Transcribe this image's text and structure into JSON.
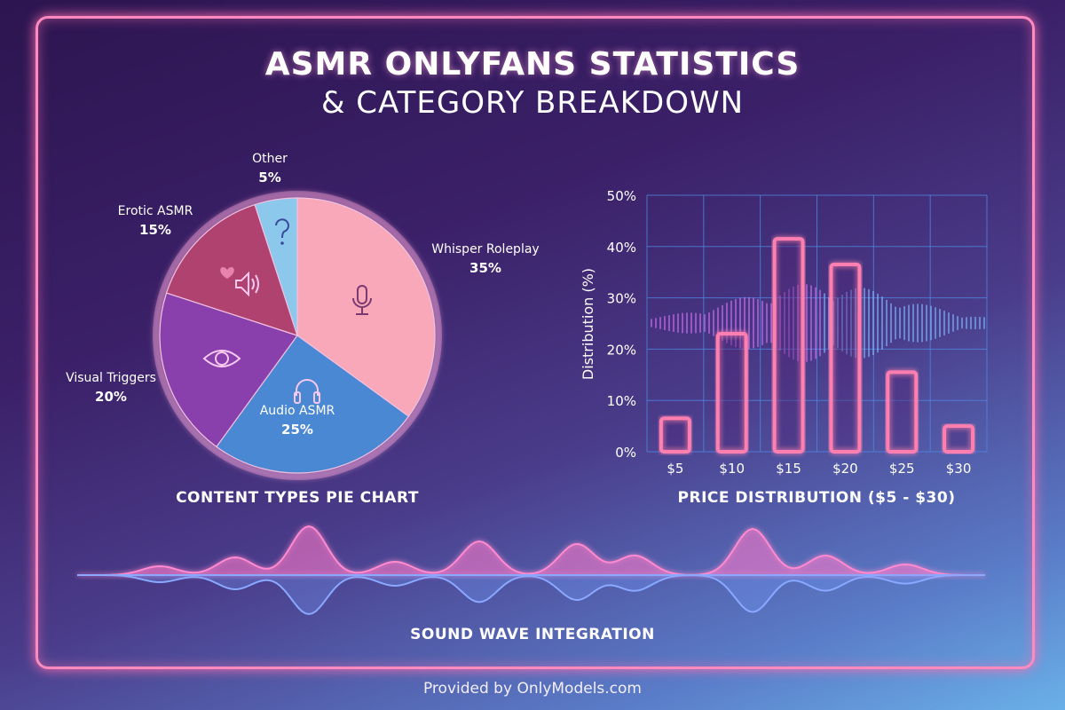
{
  "title": {
    "line1": "ASMR ONLYFANS STATISTICS",
    "line2": "& CATEGORY BREAKDOWN"
  },
  "footer": "Provided by OnlyModels.com",
  "wave_caption": "SOUND WAVE INTEGRATION",
  "colors": {
    "frame": "#ff8ac0",
    "bar_outline": "#ff7fb0",
    "grid": "#4f86e0"
  },
  "chart_data": [
    {
      "type": "pie",
      "title": "CONTENT TYPES PIE CHART",
      "slices": [
        {
          "label": "Whisper Roleplay",
          "value": 35,
          "value_label": "35%",
          "color": "#f9a8ba",
          "icon": "microphone-icon"
        },
        {
          "label": "Audio ASMR",
          "value": 25,
          "value_label": "25%",
          "color": "#4a88d4",
          "icon": "headphones-icon"
        },
        {
          "label": "Visual Triggers",
          "value": 20,
          "value_label": "20%",
          "color": "#8a40ac",
          "icon": "eye-icon"
        },
        {
          "label": "Erotic ASMR",
          "value": 15,
          "value_label": "15%",
          "color": "#b0426f",
          "icon": "heart-speaker-icon"
        },
        {
          "label": "Other",
          "value": 5,
          "value_label": "5%",
          "color": "#8cc8ec",
          "icon": "question-icon"
        }
      ]
    },
    {
      "type": "bar",
      "title": "PRICE DISTRIBUTION ($5 - $30)",
      "ylabel": "Distribution (%)",
      "xlabel": "",
      "categories": [
        "$5",
        "$10",
        "$15",
        "$20",
        "$25",
        "$30"
      ],
      "values": [
        6.5,
        23,
        41.5,
        36.5,
        15.5,
        5
      ],
      "ylim": [
        0,
        50
      ],
      "yticks": [
        "0%",
        "10%",
        "20%",
        "30%",
        "40%",
        "50%"
      ],
      "grid": true
    }
  ]
}
